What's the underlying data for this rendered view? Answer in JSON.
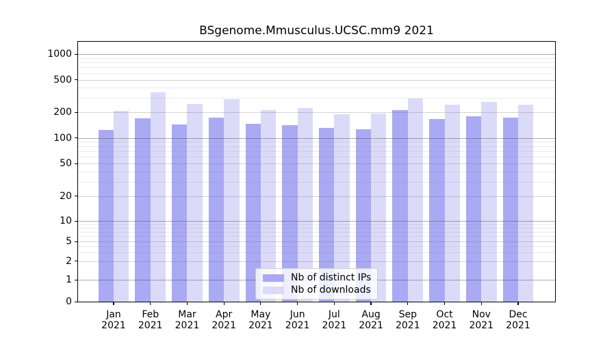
{
  "chart_data": {
    "type": "bar",
    "title": "BSgenome.Mmusculus.UCSC.mm9 2021",
    "categories": [
      {
        "month": "Jan",
        "year": "2021"
      },
      {
        "month": "Feb",
        "year": "2021"
      },
      {
        "month": "Mar",
        "year": "2021"
      },
      {
        "month": "Apr",
        "year": "2021"
      },
      {
        "month": "May",
        "year": "2021"
      },
      {
        "month": "Jun",
        "year": "2021"
      },
      {
        "month": "Jul",
        "year": "2021"
      },
      {
        "month": "Aug",
        "year": "2021"
      },
      {
        "month": "Sep",
        "year": "2021"
      },
      {
        "month": "Oct",
        "year": "2021"
      },
      {
        "month": "Nov",
        "year": "2021"
      },
      {
        "month": "Dec",
        "year": "2021"
      }
    ],
    "series": [
      {
        "name": "Nb of distinct IPs",
        "color": "#a9a9f4",
        "values": [
          125,
          170,
          143,
          174,
          146,
          141,
          131,
          126,
          212,
          166,
          181,
          172
        ]
      },
      {
        "name": "Nb of downloads",
        "color": "#dbdbf9",
        "values": [
          210,
          350,
          255,
          290,
          215,
          225,
          190,
          195,
          295,
          248,
          269,
          250
        ]
      }
    ],
    "xlabel": "",
    "ylabel": "",
    "yscale": "symlog",
    "yticks": [
      0,
      1,
      2,
      5,
      10,
      20,
      50,
      100,
      200,
      500,
      1000
    ],
    "ylim": [
      0,
      1400
    ],
    "grid": "horizontal major and minor, drawn over bars",
    "legend_position": "lower center"
  },
  "colors": {
    "axis": "#000000",
    "grid_major": "rgba(80,80,80,0.48)",
    "grid_semi": "rgba(110,110,110,0.30)",
    "grid_minor": "rgba(130,130,130,0.17)",
    "legend_border": "#cccccc",
    "legend_background": "rgba(255,255,255,0.8)"
  }
}
